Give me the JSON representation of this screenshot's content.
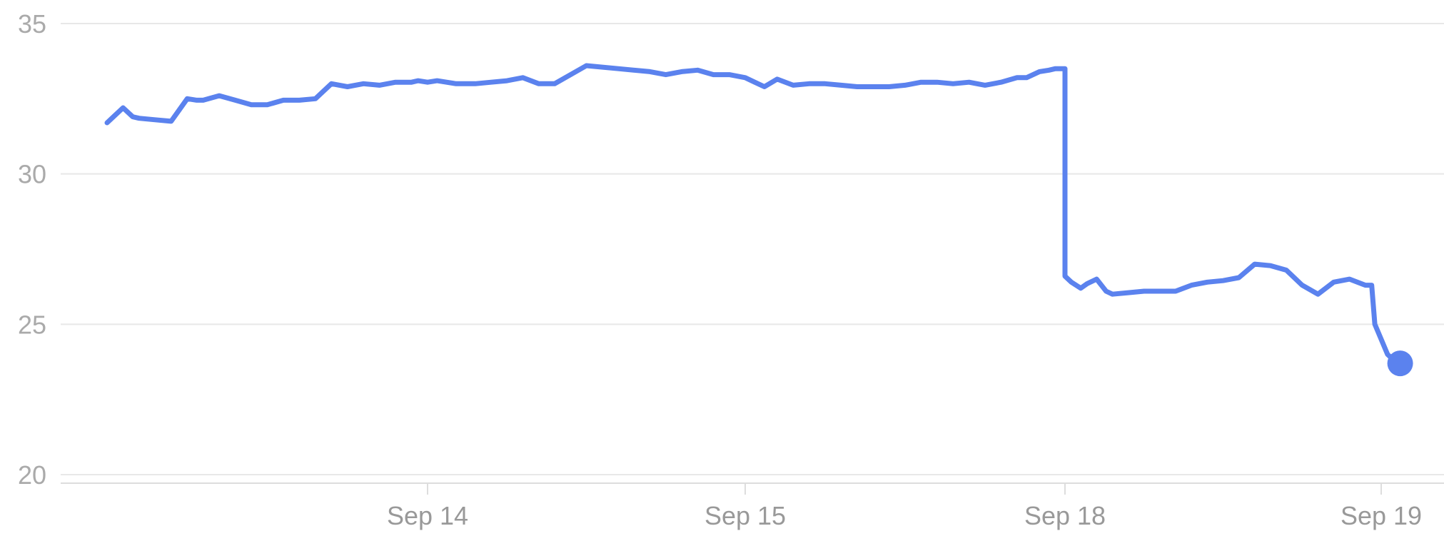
{
  "chart_data": {
    "type": "line",
    "title": "",
    "xlabel": "",
    "ylabel": "",
    "ylim": [
      20,
      35
    ],
    "yticks": [
      "35",
      "30",
      "25",
      "20"
    ],
    "xticks": [
      "Sep 14",
      "Sep 15",
      "Sep 18",
      "Sep 19"
    ],
    "grid": true,
    "legend": "none",
    "line_color": "#5b82ee",
    "grid_color": "#e8e8e8",
    "series": [
      {
        "x": [
          0,
          0.02,
          0.05,
          0.08,
          0.1,
          0.15,
          0.2,
          0.25,
          0.28,
          0.3,
          0.35,
          0.4,
          0.45,
          0.5,
          0.55,
          0.6,
          0.65,
          0.7,
          0.75,
          0.8,
          0.85,
          0.9,
          0.95,
          0.97,
          1.0,
          1.03,
          1.06,
          1.09,
          1.1,
          1.15,
          1.2,
          1.25,
          1.3,
          1.35,
          1.4,
          1.5,
          1.6,
          1.7,
          1.75,
          1.8,
          1.85,
          1.9,
          1.95,
          2.0,
          2.03,
          2.06,
          2.1,
          2.15,
          2.2,
          2.25,
          2.3,
          2.35,
          2.4,
          2.45,
          2.5,
          2.55,
          2.6,
          2.65,
          2.7,
          2.75,
          2.8,
          2.85,
          2.88,
          2.92,
          2.95,
          2.97,
          3.0,
          3.0,
          3.02,
          3.05,
          3.07,
          3.1,
          3.13,
          3.15,
          3.2,
          3.25,
          3.3,
          3.35,
          3.4,
          3.45,
          3.5,
          3.55,
          3.6,
          3.65,
          3.7,
          3.75,
          3.8,
          3.85,
          3.9,
          3.95,
          3.97,
          3.98,
          4.0,
          4.02,
          4.04,
          4.06
        ],
        "y": [
          31.7,
          31.9,
          32.2,
          31.9,
          31.85,
          31.8,
          31.75,
          32.5,
          32.45,
          32.45,
          32.6,
          32.45,
          32.3,
          32.3,
          32.45,
          32.45,
          32.5,
          33.0,
          32.9,
          33.0,
          32.95,
          33.05,
          33.05,
          33.1,
          33.05,
          33.1,
          33.05,
          33.0,
          33.0,
          33.0,
          33.05,
          33.1,
          33.2,
          33.0,
          33.0,
          33.6,
          33.5,
          33.4,
          33.3,
          33.4,
          33.45,
          33.3,
          33.3,
          33.2,
          33.05,
          32.9,
          33.15,
          32.95,
          33.0,
          33.0,
          32.95,
          32.9,
          32.9,
          32.9,
          32.95,
          33.05,
          33.05,
          33.0,
          33.05,
          32.95,
          33.05,
          33.2,
          33.2,
          33.4,
          33.45,
          33.5,
          33.5,
          26.6,
          26.4,
          26.2,
          26.35,
          26.5,
          26.1,
          26.0,
          26.05,
          26.1,
          26.1,
          26.1,
          26.3,
          26.4,
          26.45,
          26.55,
          27.0,
          26.95,
          26.8,
          26.3,
          26.0,
          26.4,
          26.5,
          26.3,
          26.3,
          25.0,
          24.5,
          24.0,
          23.8,
          23.7
        ]
      }
    ]
  }
}
